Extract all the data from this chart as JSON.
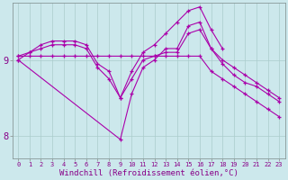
{
  "xlabel": "Windchill (Refroidissement éolien,°C)",
  "bg_color": "#cce8ec",
  "line_color": "#aa00aa",
  "grid_color": "#aacccc",
  "x": [
    0,
    1,
    2,
    3,
    4,
    5,
    6,
    7,
    8,
    9,
    10,
    11,
    12,
    13,
    14,
    15,
    16,
    17,
    18,
    19,
    20,
    21,
    22,
    23
  ],
  "line1": [
    9.05,
    9.05,
    9.05,
    9.05,
    9.05,
    9.05,
    9.05,
    9.05,
    9.05,
    9.05,
    9.05,
    9.05,
    9.05,
    9.05,
    9.05,
    9.05,
    9.05,
    8.85,
    8.75,
    8.65,
    8.55,
    8.45,
    8.35,
    8.25
  ],
  "line2": [
    9.05,
    9.1,
    9.15,
    9.2,
    9.2,
    9.2,
    9.15,
    8.9,
    8.75,
    8.5,
    8.75,
    9.0,
    9.05,
    9.1,
    9.1,
    9.35,
    9.4,
    9.15,
    9.0,
    8.9,
    8.8,
    8.7,
    8.6,
    8.5
  ],
  "line3": [
    9.0,
    9.1,
    9.2,
    9.25,
    9.25,
    9.25,
    9.2,
    8.95,
    8.85,
    8.5,
    8.85,
    9.1,
    9.2,
    9.35,
    9.5,
    9.65,
    9.7,
    9.4,
    9.15,
    null,
    null,
    null,
    null,
    null
  ],
  "line4": [
    9.0,
    null,
    null,
    null,
    null,
    null,
    null,
    null,
    null,
    7.95,
    8.55,
    8.9,
    9.0,
    9.15,
    9.15,
    9.45,
    9.5,
    9.15,
    8.95,
    8.8,
    8.7,
    8.65,
    8.55,
    8.45
  ],
  "ylim": [
    7.7,
    9.75
  ],
  "ytick_locs": [
    8.0,
    9.0
  ],
  "ytick_labels": [
    "8",
    "9"
  ],
  "xlim": [
    -0.5,
    23.5
  ],
  "xlabel_fontsize": 6.5,
  "xtick_fontsize": 5.0,
  "ytick_fontsize": 7.5,
  "tick_color": "#880088",
  "label_color": "#880088"
}
